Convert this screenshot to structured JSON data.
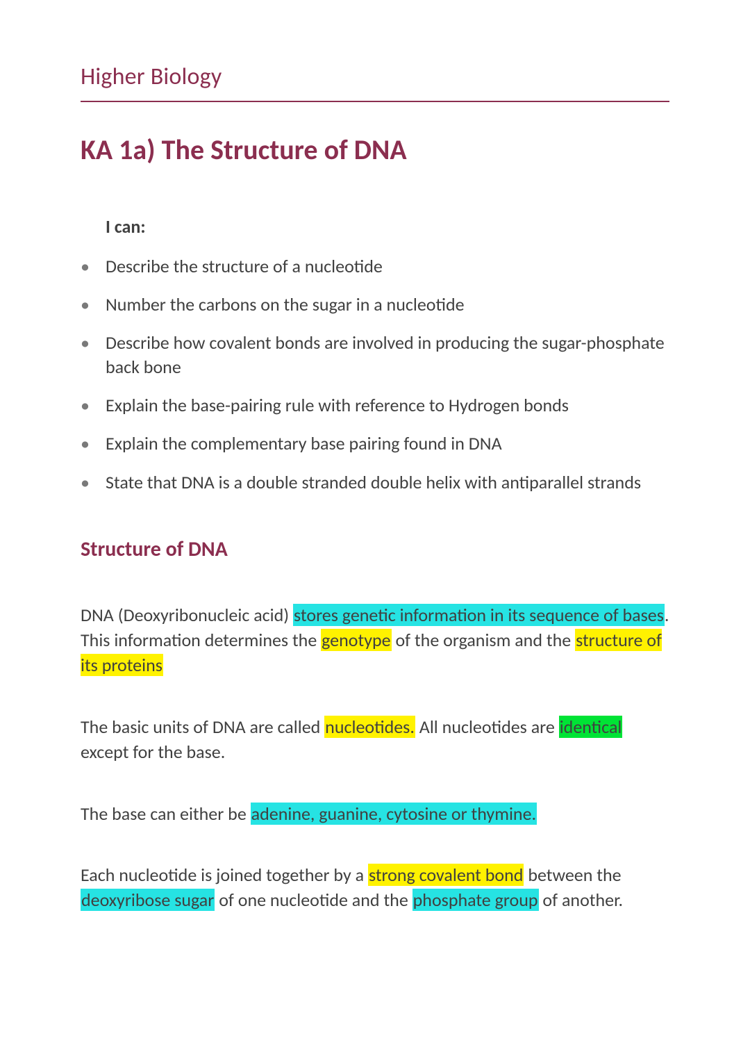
{
  "colors": {
    "accent": "#8b2e4f",
    "body_text": "#404040",
    "bullet": "#7a7a7a",
    "background": "#ffffff",
    "highlight_cyan": "#26e3e3",
    "highlight_yellow": "#fff200",
    "highlight_green": "#00e335",
    "rule": "#8b2e4f"
  },
  "typography": {
    "family": "Calibri",
    "page_header_pt": 26,
    "main_title_pt": 30,
    "sub_title_pt": 22,
    "body_pt": 20
  },
  "header": {
    "text": "Higher Biology"
  },
  "main_title": "KA 1a) The Structure of DNA",
  "i_can_label": "I can:",
  "objectives": [
    "Describe the structure of a nucleotide",
    "Number the carbons on the sugar in a nucleotide",
    "Describe how covalent bonds are involved in producing the sugar-phosphate back bone",
    "Explain the base-pairing rule with reference to Hydrogen bonds",
    "Explain the complementary base pairing found in DNA",
    "State that DNA is a double stranded double helix with antiparallel strands"
  ],
  "sub_title": "Structure of DNA",
  "paragraphs": [
    {
      "runs": [
        {
          "t": "DNA (Deoxyribonucleic acid) "
        },
        {
          "t": "stores genetic information in its sequence of bases",
          "hl": "cyan"
        },
        {
          "t": ". This information determines the "
        },
        {
          "t": "genotype",
          "hl": "yellow"
        },
        {
          "t": " of the organism and the "
        },
        {
          "t": "structure of its proteins",
          "hl": "yellow"
        }
      ]
    },
    {
      "runs": [
        {
          "t": "The basic units of DNA are called "
        },
        {
          "t": "nucleotides.",
          "hl": "yellow"
        },
        {
          "t": " All nucleotides are "
        },
        {
          "t": "identical",
          "hl": "green"
        },
        {
          "t": " except for the base."
        }
      ]
    },
    {
      "runs": [
        {
          "t": "The base can either be "
        },
        {
          "t": "adenine, guanine, cytosine or thymine.",
          "hl": "cyan"
        }
      ]
    },
    {
      "runs": [
        {
          "t": "Each nucleotide is joined together by a "
        },
        {
          "t": "strong covalent bond",
          "hl": "yellow"
        },
        {
          "t": " between the "
        },
        {
          "t": "deoxyribose sugar",
          "hl": "cyan"
        },
        {
          "t": " of one nucleotide and the "
        },
        {
          "t": "phosphate group",
          "hl": "cyan"
        },
        {
          "t": " of another."
        }
      ]
    }
  ]
}
